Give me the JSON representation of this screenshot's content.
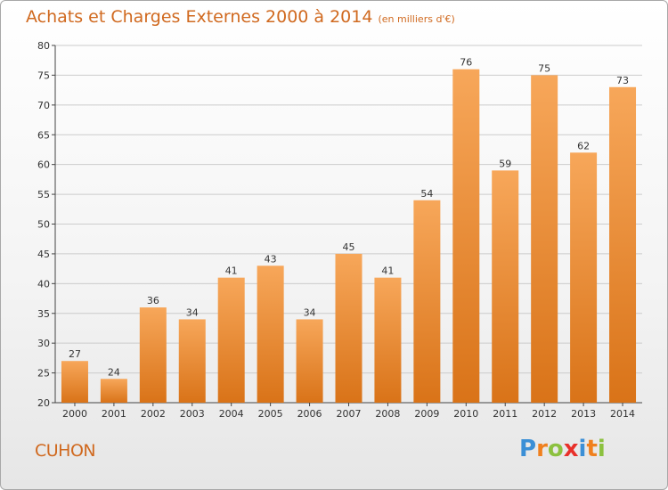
{
  "header": {
    "title": "Achats et Charges Externes 2000 à 2014",
    "subtitle": "(en milliers d'€)"
  },
  "commune": "CUHON",
  "logo": {
    "letters": [
      "P",
      "r",
      "o",
      "x",
      "i",
      "t",
      "i"
    ],
    "colors": [
      "#3b8fd6",
      "#f0801e",
      "#8cc13f",
      "#e8302a",
      "#3b8fd6",
      "#f0801e",
      "#8cc13f"
    ]
  },
  "colors": {
    "bar_top": "#f7a75a",
    "bar_bottom": "#d97318",
    "grid": "#cccccc"
  },
  "chart_data": {
    "type": "bar",
    "title": "Achats et Charges Externes 2000 à 2014",
    "subtitle": "(en milliers d'€)",
    "categories": [
      "2000",
      "2001",
      "2002",
      "2003",
      "2004",
      "2005",
      "2006",
      "2007",
      "2008",
      "2009",
      "2010",
      "2011",
      "2012",
      "2013",
      "2014"
    ],
    "values": [
      27,
      24,
      36,
      34,
      41,
      43,
      34,
      45,
      41,
      54,
      76,
      59,
      75,
      62,
      73
    ],
    "value_labels": [
      "27",
      "24",
      "36",
      "34",
      "41",
      "43",
      "34",
      "45",
      "41",
      "54",
      "76",
      "59",
      "75",
      "62",
      "73"
    ],
    "ylim": [
      20,
      80
    ],
    "yticks": [
      20,
      25,
      30,
      35,
      40,
      45,
      50,
      55,
      60,
      65,
      70,
      75,
      80
    ],
    "ytick_labels": [
      "20",
      "25",
      "30",
      "35",
      "40",
      "45",
      "50",
      "55",
      "60",
      "65",
      "70",
      "75",
      "80"
    ],
    "grid": true
  }
}
